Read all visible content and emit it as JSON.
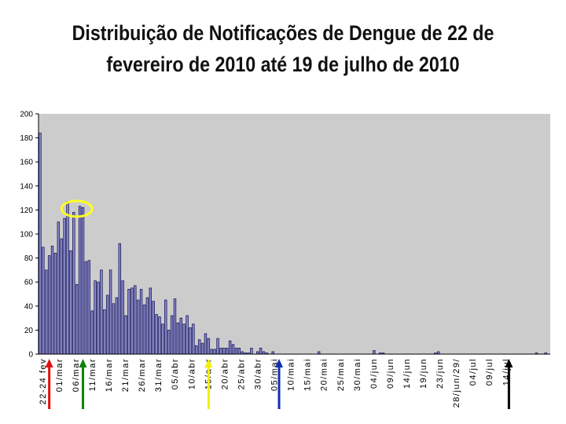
{
  "title_line1": "Distribuição de Notificações de Dengue de 22 de",
  "title_line2": "fevereiro de 2010 até 19 de julho de 2010",
  "colors": {
    "bar_fill": "#8c8ccc",
    "bar_stroke": "#1a1a5e",
    "plot_bg": "#cccccc",
    "highlight": "#ffff22",
    "arrow_red": "#e01010",
    "arrow_green": "#108010",
    "arrow_yellow": "#f0f000",
    "arrow_blue": "#1030b0",
    "arrow_black": "#000000"
  },
  "chart_data": {
    "type": "bar",
    "title": "Distribuição de Notificações de Dengue de 22 de fevereiro de 2010 até 19 de julho de 2010",
    "xlabel": "",
    "ylabel": "",
    "ylim": [
      0,
      200
    ],
    "yticks": [
      0,
      20,
      40,
      60,
      80,
      100,
      120,
      140,
      160,
      180,
      200
    ],
    "grid": false,
    "legend": "none",
    "x_tick_labels": [
      "22-24 fev",
      "01/mar",
      "06/mar",
      "11/mar",
      "16/mar",
      "21/mar",
      "26/mar",
      "31/mar",
      "05/abr",
      "10/abr",
      "15/abr",
      "20/abr",
      "25/abr",
      "30/abr",
      "05/mai",
      "10/mai",
      "15/mai",
      "20/mai",
      "25/mai",
      "30/mai",
      "04/jun",
      "09/jun",
      "14/jun",
      "19/jun",
      "23/jun",
      "28/jun/29/",
      "04/jul",
      "09/jul",
      "14/jul"
    ],
    "values": [
      184,
      89,
      70,
      82,
      90,
      84,
      110,
      96,
      113,
      127,
      86,
      118,
      58,
      123,
      122,
      77,
      78,
      36,
      61,
      60,
      70,
      37,
      49,
      70,
      42,
      47,
      92,
      61,
      32,
      54,
      55,
      57,
      45,
      54,
      41,
      47,
      55,
      44,
      33,
      31,
      25,
      45,
      20,
      32,
      46,
      26,
      30,
      25,
      32,
      22,
      25,
      7,
      12,
      9,
      17,
      13,
      4,
      4,
      13,
      5,
      5,
      5,
      11,
      8,
      5,
      5,
      2,
      1,
      1,
      5,
      0,
      2,
      5,
      2,
      1,
      0,
      2,
      0,
      0,
      0,
      0,
      0,
      0,
      0,
      0,
      0,
      0,
      0,
      0,
      0,
      0,
      2,
      0,
      0,
      0,
      0,
      0,
      0,
      0,
      0,
      0,
      0,
      0,
      0,
      0,
      0,
      0,
      0,
      0,
      3,
      0,
      1,
      1,
      0,
      0,
      0,
      0,
      0,
      0,
      0,
      0,
      0,
      0,
      0,
      0,
      0,
      0,
      0,
      0,
      1,
      2,
      0,
      0,
      0,
      0,
      0,
      0,
      0,
      0,
      0,
      0,
      0,
      0,
      0,
      0,
      0,
      0,
      0,
      0,
      0,
      0,
      0,
      0,
      0,
      0,
      0,
      0,
      0,
      0,
      0,
      0,
      0,
      1,
      0,
      0,
      1,
      0
    ],
    "annotations": [
      {
        "type": "ellipse",
        "bar_from": 8,
        "bar_to": 15,
        "y_center": 121
      },
      {
        "type": "arrow",
        "color": "red",
        "bar": 3
      },
      {
        "type": "arrow",
        "color": "green",
        "bar": 14
      },
      {
        "type": "arrow",
        "color": "yellow",
        "bar": 55
      },
      {
        "type": "arrow",
        "color": "blue",
        "bar": 78
      },
      {
        "type": "arrow",
        "color": "black",
        "bar": 153
      }
    ]
  }
}
